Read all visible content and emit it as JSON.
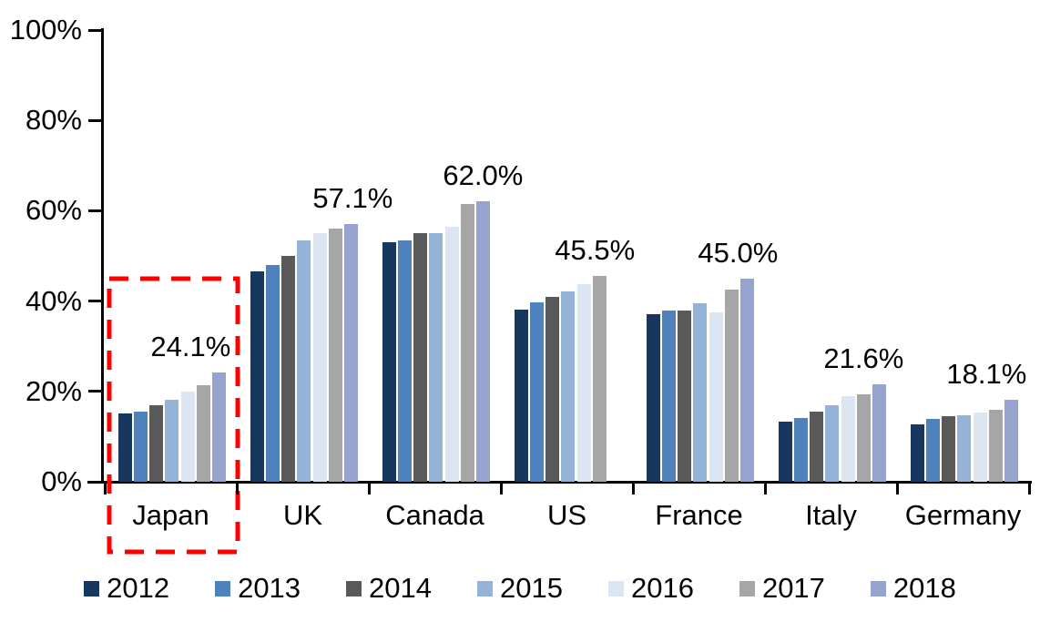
{
  "chart_data": {
    "type": "bar",
    "title": "",
    "xlabel": "",
    "ylabel": "",
    "ylim": [
      0,
      100
    ],
    "grid": false,
    "legend_position": "bottom",
    "y_tick_labels": [
      "100%",
      "80%",
      "60%",
      "40%",
      "20%",
      "0%"
    ],
    "categories": [
      "Japan",
      "UK",
      "Canada",
      "US",
      "France",
      "Italy",
      "Germany"
    ],
    "series": [
      {
        "name": "2012",
        "color": "#17375E",
        "values": [
          15.1,
          46.5,
          53.0,
          38.2,
          37.0,
          13.3,
          12.7
        ]
      },
      {
        "name": "2013",
        "color": "#4F81BD",
        "values": [
          15.5,
          48.0,
          53.5,
          39.8,
          38.0,
          14.2,
          14.0
        ]
      },
      {
        "name": "2014",
        "color": "#595959",
        "values": [
          16.9,
          50.0,
          55.0,
          41.0,
          38.0,
          15.5,
          14.5
        ]
      },
      {
        "name": "2015",
        "color": "#95B3D7",
        "values": [
          18.2,
          53.5,
          55.0,
          42.2,
          39.5,
          17.0,
          14.8
        ]
      },
      {
        "name": "2016",
        "color": "#DCE6F2",
        "values": [
          20.0,
          55.0,
          56.5,
          43.7,
          37.5,
          19.0,
          15.3
        ]
      },
      {
        "name": "2017",
        "color": "#A6A6A6",
        "values": [
          21.3,
          56.0,
          61.5,
          45.5,
          42.5,
          19.3,
          16.0
        ]
      },
      {
        "name": "2018",
        "color": "#95A3CE",
        "values": [
          24.1,
          57.1,
          62.0,
          null,
          45.0,
          21.6,
          18.1
        ]
      }
    ],
    "annotations": [
      {
        "category": "Japan",
        "text": "24.1%",
        "value": 24.1
      },
      {
        "category": "UK",
        "text": "57.1%",
        "value": 57.1
      },
      {
        "category": "Canada",
        "text": "62.0%",
        "value": 62.0
      },
      {
        "category": "US",
        "text": "45.5%",
        "value": 45.5
      },
      {
        "category": "France",
        "text": "45.0%",
        "value": 45.0
      },
      {
        "category": "Italy",
        "text": "21.6%",
        "value": 21.6
      },
      {
        "category": "Germany",
        "text": "18.1%",
        "value": 18.1
      }
    ],
    "highlight": {
      "category": "Japan",
      "style": "red-dashed-box",
      "color": "#FF0000"
    }
  }
}
